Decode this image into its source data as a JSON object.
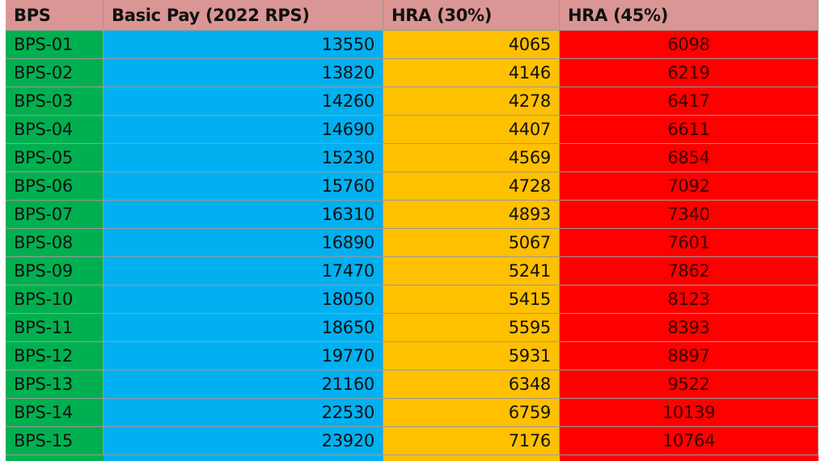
{
  "table": {
    "header": [
      "BPS",
      "Basic Pay (2022 RPS)",
      "HRA (30%)",
      "HRA (45%)"
    ],
    "rows": [
      [
        "BPS-01",
        13550,
        4065,
        6098
      ],
      [
        "BPS-02",
        13820,
        4146,
        6219
      ],
      [
        "BPS-03",
        14260,
        4278,
        6417
      ],
      [
        "BPS-04",
        14690,
        4407,
        6611
      ],
      [
        "BPS-05",
        15230,
        4569,
        6854
      ],
      [
        "BPS-06",
        15760,
        4728,
        7092
      ],
      [
        "BPS-07",
        16310,
        4893,
        7340
      ],
      [
        "BPS-08",
        16890,
        5067,
        7601
      ],
      [
        "BPS-09",
        17470,
        5241,
        7862
      ],
      [
        "BPS-10",
        18050,
        5415,
        8123
      ],
      [
        "BPS-11",
        18650,
        5595,
        8393
      ],
      [
        "BPS-12",
        19770,
        5931,
        8897
      ],
      [
        "BPS-13",
        21160,
        6348,
        9522
      ],
      [
        "BPS-14",
        22530,
        6759,
        10139
      ],
      [
        "BPS-15",
        23920,
        7176,
        10764
      ]
    ]
  }
}
